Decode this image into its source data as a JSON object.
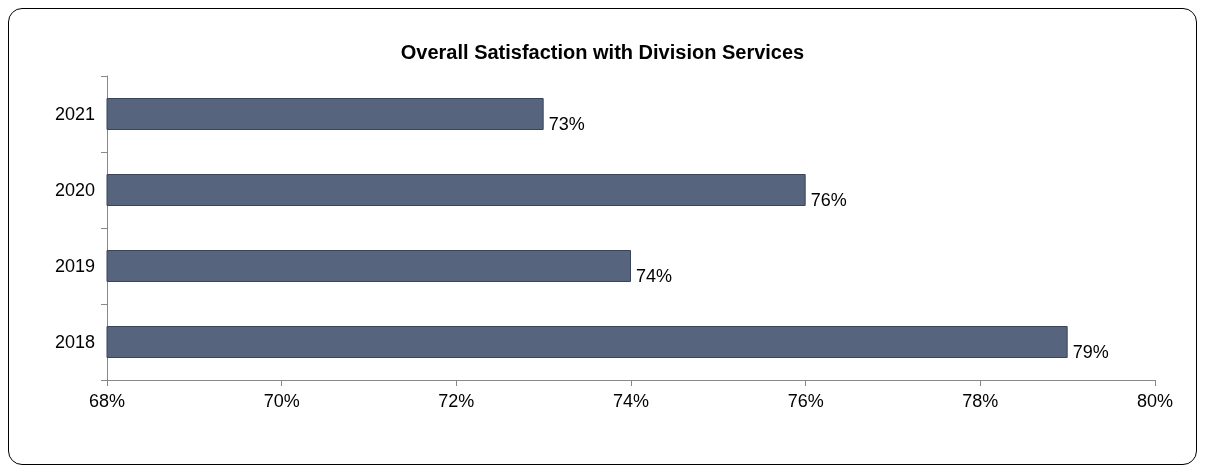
{
  "chart_data": {
    "type": "bar",
    "orientation": "horizontal",
    "title": "Overall Satisfaction with Division Services",
    "categories": [
      "2021",
      "2020",
      "2019",
      "2018"
    ],
    "values": [
      73,
      76,
      74,
      79
    ],
    "value_labels": [
      "73%",
      "76%",
      "74%",
      "79%"
    ],
    "color": "#56647e",
    "xlim": [
      68,
      80
    ],
    "xticks": [
      {
        "value": 68,
        "label": "68%"
      },
      {
        "value": 70,
        "label": "70%"
      },
      {
        "value": 72,
        "label": "72%"
      },
      {
        "value": 74,
        "label": "74%"
      },
      {
        "value": 76,
        "label": "76%"
      },
      {
        "value": 78,
        "label": "78%"
      },
      {
        "value": 80,
        "label": "80%"
      }
    ],
    "grid": false
  }
}
